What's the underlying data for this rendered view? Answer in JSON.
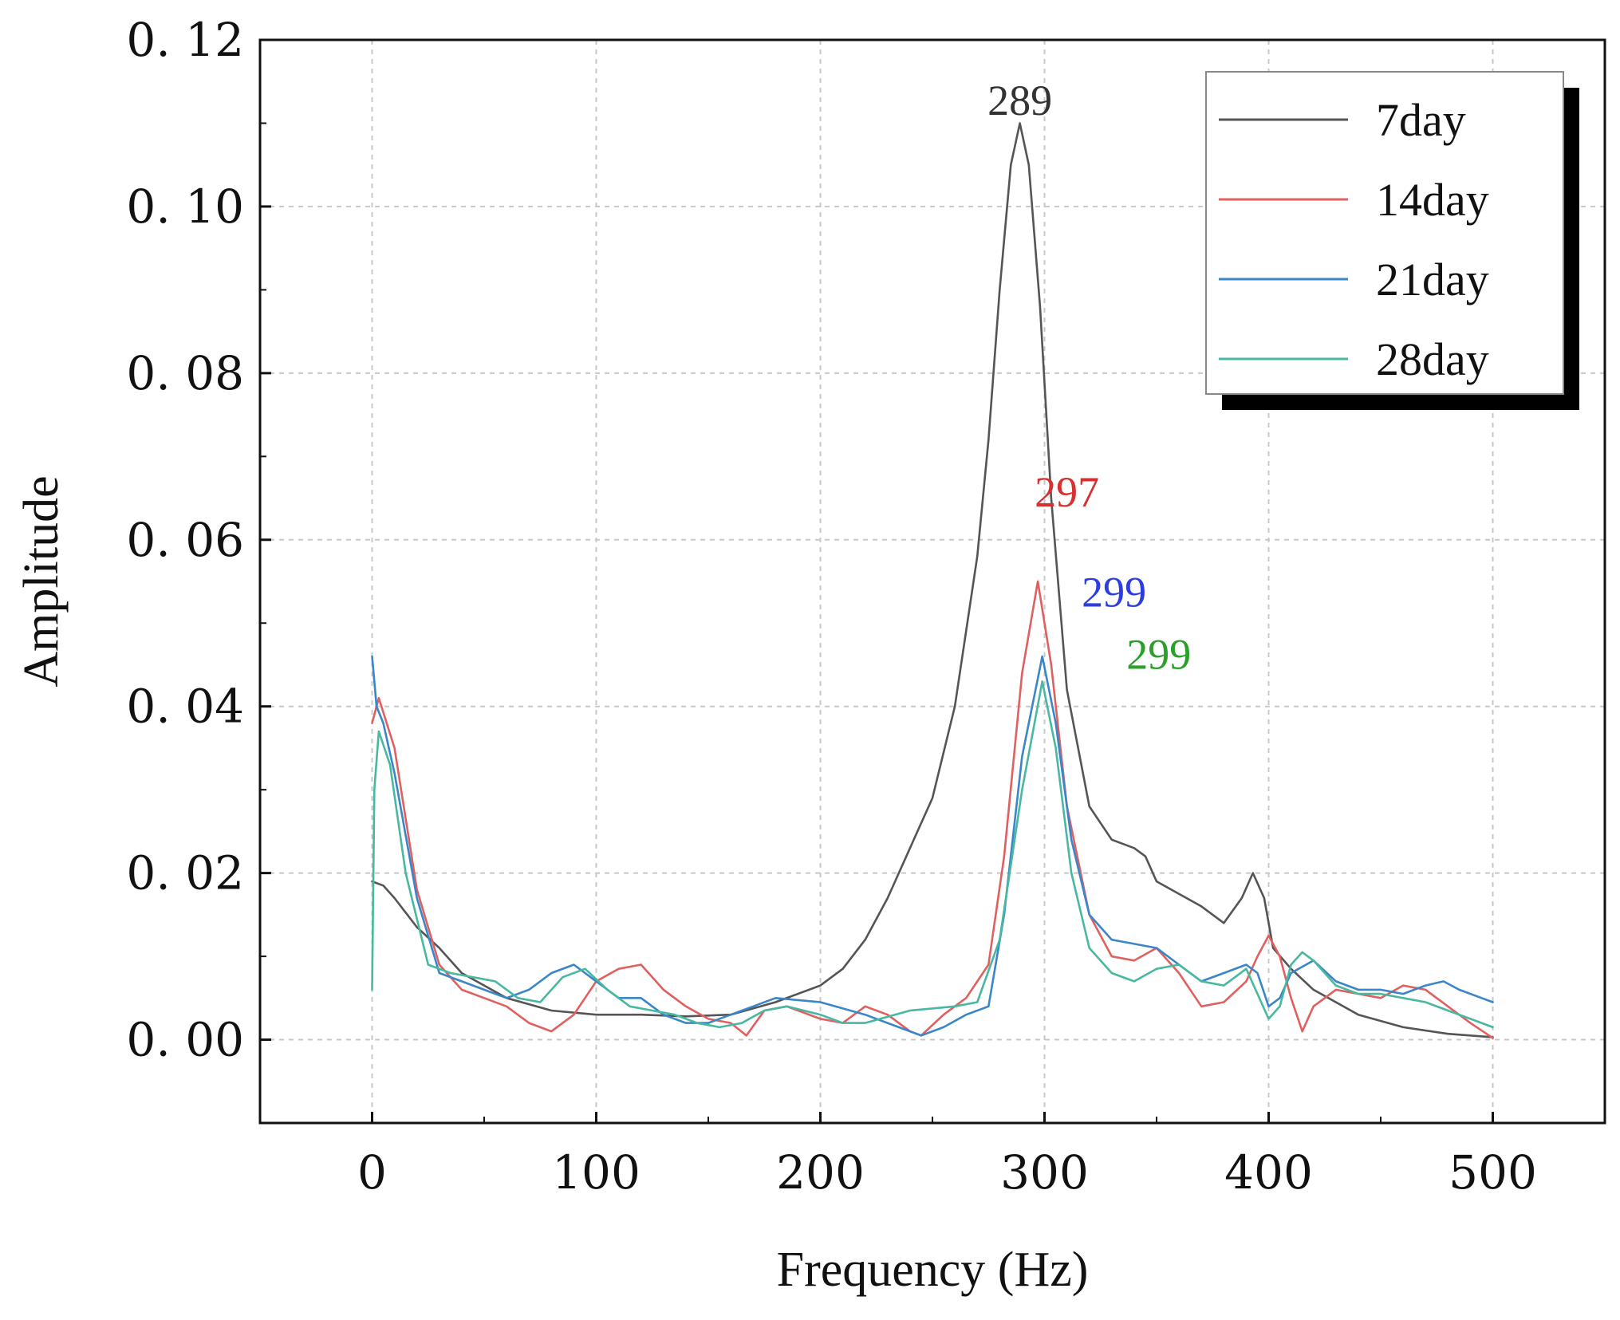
{
  "chart_data": {
    "type": "line",
    "title": "",
    "xlabel": "Frequency (Hz)",
    "ylabel": "Amplitude",
    "xlim": [
      -50,
      550
    ],
    "ylim": [
      -0.01,
      0.12
    ],
    "x_ticks": [
      0,
      100,
      200,
      300,
      400,
      500
    ],
    "x_tick_labels": [
      "0",
      "100",
      "200",
      "300",
      "400",
      "500"
    ],
    "y_ticks": [
      0.0,
      0.02,
      0.04,
      0.06,
      0.08,
      0.1,
      0.12
    ],
    "y_tick_labels": [
      "0. 00",
      "0. 02",
      "0. 04",
      "0. 06",
      "0. 08",
      "0. 10",
      "0. 12"
    ],
    "grid": true,
    "legend_position": "top-right",
    "series": [
      {
        "name": "7day",
        "color": "#555555",
        "x": [
          0,
          5,
          10,
          20,
          30,
          40,
          60,
          80,
          100,
          120,
          140,
          160,
          180,
          200,
          210,
          220,
          230,
          240,
          250,
          260,
          270,
          275,
          280,
          285,
          289,
          293,
          298,
          303,
          310,
          320,
          330,
          340,
          345,
          350,
          360,
          370,
          380,
          388,
          393,
          398,
          402,
          410,
          420,
          440,
          460,
          480,
          500
        ],
        "y": [
          0.019,
          0.0185,
          0.017,
          0.0135,
          0.011,
          0.008,
          0.005,
          0.0035,
          0.003,
          0.003,
          0.0028,
          0.003,
          0.0045,
          0.0065,
          0.0085,
          0.012,
          0.017,
          0.023,
          0.029,
          0.04,
          0.058,
          0.072,
          0.09,
          0.105,
          0.11,
          0.105,
          0.088,
          0.065,
          0.042,
          0.028,
          0.024,
          0.023,
          0.022,
          0.019,
          0.0175,
          0.016,
          0.014,
          0.017,
          0.02,
          0.017,
          0.011,
          0.0085,
          0.006,
          0.003,
          0.0015,
          0.0007,
          0.0003
        ]
      },
      {
        "name": "14day",
        "color": "#e06060",
        "x": [
          0,
          3,
          10,
          20,
          30,
          40,
          50,
          60,
          70,
          80,
          90,
          100,
          110,
          120,
          130,
          140,
          150,
          160,
          167,
          175,
          185,
          200,
          210,
          220,
          230,
          240,
          245,
          255,
          265,
          275,
          282,
          290,
          297,
          303,
          310,
          320,
          330,
          340,
          350,
          360,
          370,
          380,
          390,
          395,
          400,
          405,
          410,
          415,
          420,
          430,
          440,
          450,
          460,
          470,
          480,
          490,
          500
        ],
        "y": [
          0.038,
          0.041,
          0.035,
          0.018,
          0.009,
          0.006,
          0.005,
          0.004,
          0.002,
          0.001,
          0.003,
          0.007,
          0.0085,
          0.009,
          0.006,
          0.004,
          0.0025,
          0.002,
          0.0005,
          0.0035,
          0.004,
          0.0025,
          0.002,
          0.004,
          0.003,
          0.001,
          0.0005,
          0.003,
          0.005,
          0.009,
          0.022,
          0.044,
          0.055,
          0.045,
          0.028,
          0.015,
          0.01,
          0.0095,
          0.011,
          0.008,
          0.004,
          0.0045,
          0.007,
          0.01,
          0.0125,
          0.01,
          0.005,
          0.001,
          0.004,
          0.006,
          0.0055,
          0.005,
          0.0065,
          0.006,
          0.004,
          0.002,
          0.0002
        ]
      },
      {
        "name": "21day",
        "color": "#3a86c8",
        "x": [
          0,
          2,
          5,
          10,
          20,
          30,
          40,
          50,
          60,
          70,
          80,
          90,
          100,
          110,
          120,
          130,
          140,
          150,
          160,
          170,
          180,
          200,
          220,
          235,
          245,
          255,
          265,
          275,
          282,
          290,
          299,
          305,
          312,
          320,
          330,
          340,
          350,
          360,
          370,
          380,
          390,
          395,
          400,
          405,
          410,
          420,
          430,
          440,
          450,
          460,
          470,
          478,
          485,
          495,
          500
        ],
        "y": [
          0.046,
          0.04,
          0.038,
          0.032,
          0.017,
          0.008,
          0.007,
          0.006,
          0.005,
          0.006,
          0.008,
          0.009,
          0.007,
          0.005,
          0.005,
          0.003,
          0.002,
          0.002,
          0.003,
          0.004,
          0.005,
          0.0045,
          0.003,
          0.0015,
          0.0005,
          0.0015,
          0.003,
          0.004,
          0.015,
          0.034,
          0.046,
          0.038,
          0.024,
          0.015,
          0.012,
          0.0115,
          0.011,
          0.009,
          0.007,
          0.008,
          0.009,
          0.008,
          0.004,
          0.005,
          0.008,
          0.0095,
          0.007,
          0.006,
          0.006,
          0.0055,
          0.0065,
          0.007,
          0.006,
          0.005,
          0.0045
        ]
      },
      {
        "name": "28day",
        "color": "#48b8a0",
        "x": [
          0,
          1,
          3,
          8,
          15,
          25,
          35,
          45,
          55,
          65,
          75,
          85,
          95,
          105,
          115,
          125,
          135,
          145,
          155,
          165,
          175,
          185,
          200,
          210,
          220,
          240,
          260,
          270,
          280,
          290,
          299,
          305,
          312,
          320,
          330,
          340,
          350,
          360,
          370,
          380,
          390,
          395,
          400,
          405,
          410,
          415,
          420,
          430,
          440,
          450,
          460,
          470,
          480,
          490,
          500
        ],
        "y": [
          0.006,
          0.03,
          0.037,
          0.033,
          0.02,
          0.009,
          0.008,
          0.0075,
          0.007,
          0.005,
          0.0045,
          0.0075,
          0.0085,
          0.006,
          0.004,
          0.0035,
          0.003,
          0.002,
          0.0015,
          0.002,
          0.0035,
          0.004,
          0.003,
          0.002,
          0.002,
          0.0035,
          0.004,
          0.0045,
          0.012,
          0.03,
          0.043,
          0.035,
          0.02,
          0.011,
          0.008,
          0.007,
          0.0085,
          0.009,
          0.007,
          0.0065,
          0.0085,
          0.0055,
          0.0025,
          0.004,
          0.009,
          0.0105,
          0.0095,
          0.0065,
          0.0055,
          0.0055,
          0.005,
          0.0045,
          0.0035,
          0.0025,
          0.0015
        ]
      }
    ],
    "annotations": [
      {
        "text": "289",
        "x": 289,
        "y": 0.111,
        "color": "#333333"
      },
      {
        "text": "297",
        "x": 310,
        "y": 0.064,
        "color": "#d83030"
      },
      {
        "text": "299",
        "x": 331,
        "y": 0.052,
        "color": "#2c3ee0"
      },
      {
        "text": "299",
        "x": 351,
        "y": 0.0445,
        "color": "#2aa02a"
      }
    ]
  }
}
